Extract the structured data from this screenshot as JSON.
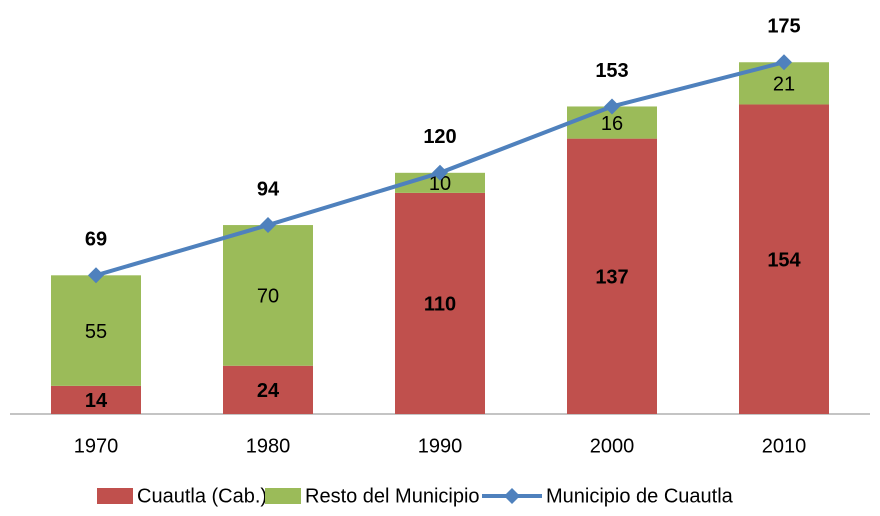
{
  "chart_data": {
    "type": "bar",
    "stacked": true,
    "categories": [
      "1970",
      "1980",
      "1990",
      "2000",
      "2010"
    ],
    "series": [
      {
        "name": "Cuautla (Cab.)",
        "color": "#c0504d",
        "values": [
          14,
          24,
          110,
          137,
          154
        ]
      },
      {
        "name": "Resto del Municipio",
        "color": "#9bbb59",
        "values": [
          55,
          70,
          10,
          16,
          21
        ]
      },
      {
        "name": "Municipio de Cuautla",
        "color": "#4f81bd",
        "type": "line",
        "values": [
          69,
          94,
          120,
          153,
          175
        ]
      }
    ],
    "legend": "bottom"
  }
}
